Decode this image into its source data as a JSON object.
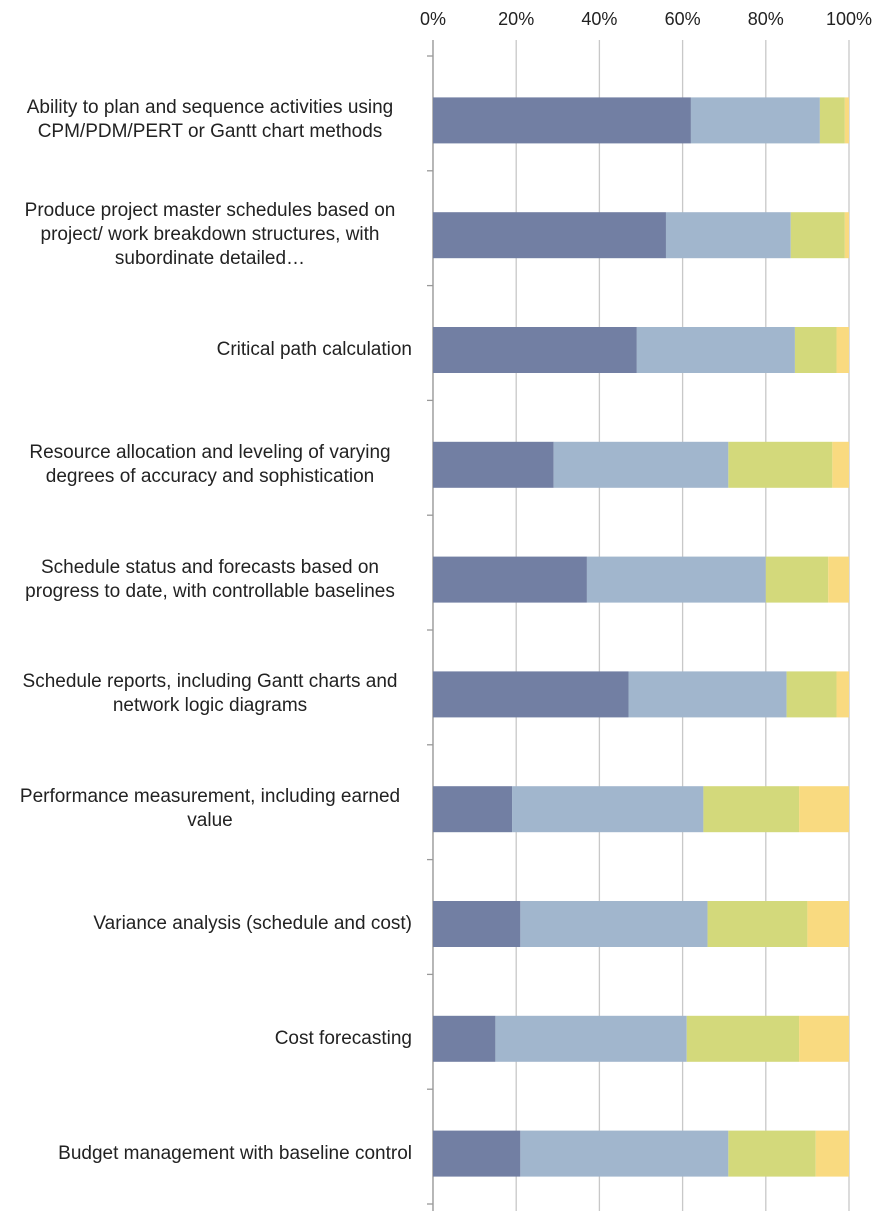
{
  "chart_data": {
    "type": "stacked-barh",
    "categories": [
      "Ability to plan and sequence activities using CPM/PDM/PERT or Gantt chart methods",
      "Produce project master schedules based on project/ work breakdown structures, with subordinate detailed…",
      "Critical path calculation",
      "Resource allocation and leveling of varying degrees of accuracy and sophistication",
      "Schedule status and forecasts based on progress to date, with controllable baselines",
      "Schedule reports, including Gantt charts and network logic diagrams",
      "Performance measurement, including earned value",
      "Variance analysis (schedule and cost)",
      "Cost forecasting",
      "Budget management with baseline control"
    ],
    "series": [
      {
        "color": "#727fa3",
        "values": [
          62,
          56,
          49,
          29,
          37,
          47,
          19,
          21,
          15,
          21
        ]
      },
      {
        "color": "#a1b6cd",
        "values": [
          31,
          30,
          38,
          42,
          43,
          38,
          46,
          45,
          46,
          50
        ]
      },
      {
        "color": "#d3d97b",
        "values": [
          6,
          13,
          10,
          25,
          15,
          12,
          23,
          24,
          27,
          21
        ]
      },
      {
        "color": "#f9da80",
        "values": [
          1,
          1,
          3,
          4,
          5,
          3,
          12,
          10,
          12,
          8
        ]
      }
    ],
    "xlim": [
      0,
      100
    ],
    "xticks": [
      {
        "value": 0,
        "label": "0%"
      },
      {
        "value": 20,
        "label": "20%"
      },
      {
        "value": 40,
        "label": "40%"
      },
      {
        "value": 60,
        "label": "60%"
      },
      {
        "value": 80,
        "label": "80%"
      },
      {
        "value": 100,
        "label": "100%"
      }
    ],
    "grid": true
  }
}
